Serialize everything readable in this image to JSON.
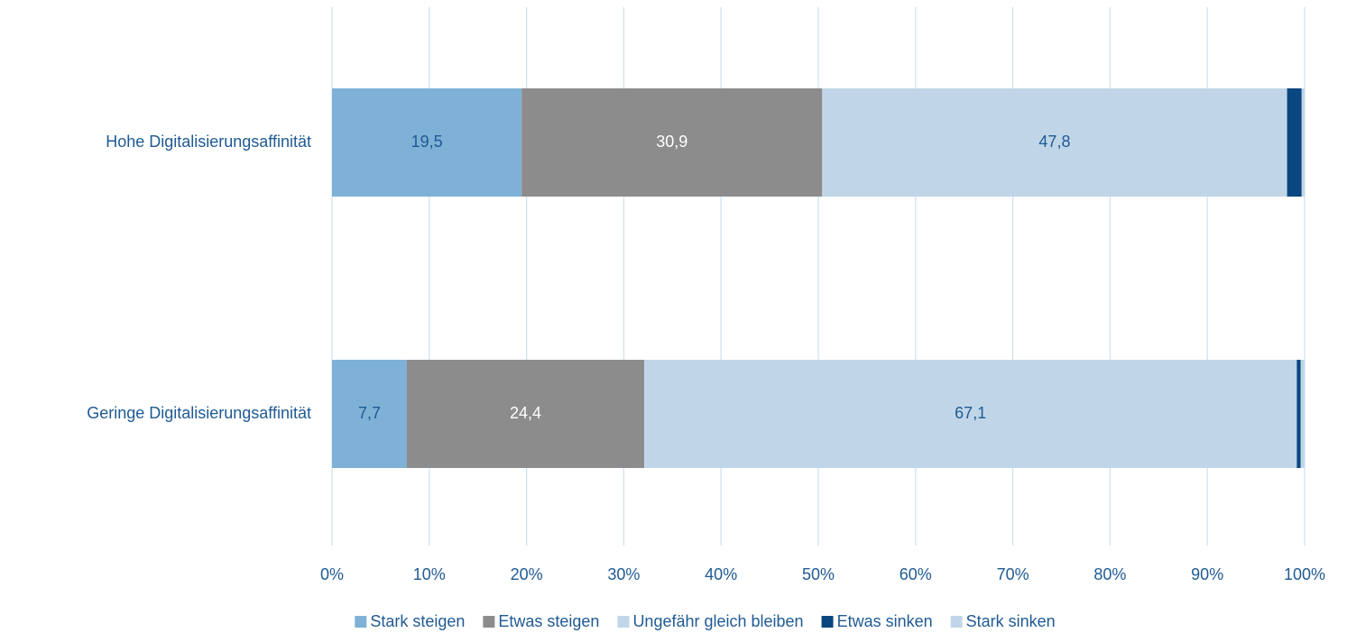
{
  "chart_data": {
    "type": "stacked-bar-horizontal",
    "categories": [
      "Hohe Digitalisierungsaffinität",
      "Geringe Digitalisierungsaffinität"
    ],
    "series": [
      {
        "name": "Stark steigen",
        "color": "#7fb1d6",
        "values": [
          19.5,
          7.7
        ],
        "value_labels": [
          "19,5",
          "7,7"
        ]
      },
      {
        "name": "Etwas steigen",
        "color": "#8c8c8c",
        "values": [
          30.9,
          24.4
        ],
        "value_labels": [
          "30,9",
          "24,4"
        ]
      },
      {
        "name": "Ungefähr gleich bleiben",
        "color": "#c0d6e8",
        "values": [
          47.8,
          67.1
        ],
        "value_labels": [
          "47,8",
          "67,1"
        ]
      },
      {
        "name": "Etwas sinken",
        "color": "#0a467f",
        "values": [
          1.5,
          0.4
        ]
      },
      {
        "name": "Stark sinken",
        "color": "#c0d6e8",
        "values": [
          0.3,
          0.4
        ]
      }
    ],
    "xlim": [
      0,
      100
    ],
    "xticks": [
      {
        "value": 0,
        "label": "0%"
      },
      {
        "value": 10,
        "label": "10%"
      },
      {
        "value": 20,
        "label": "20%"
      },
      {
        "value": 30,
        "label": "30%"
      },
      {
        "value": 40,
        "label": "40%"
      },
      {
        "value": 50,
        "label": "50%"
      },
      {
        "value": 60,
        "label": "60%"
      },
      {
        "value": 70,
        "label": "70%"
      },
      {
        "value": 80,
        "label": "80%"
      },
      {
        "value": 90,
        "label": "90%"
      },
      {
        "value": 100,
        "label": "100%"
      }
    ],
    "grid": true,
    "legend": "bottom"
  }
}
